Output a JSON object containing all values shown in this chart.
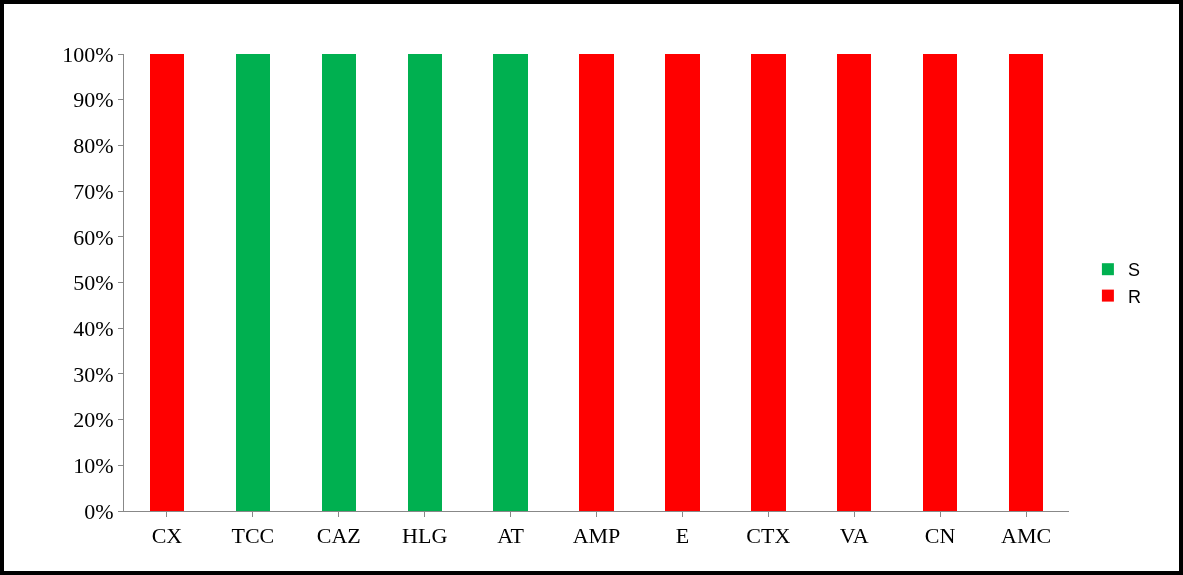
{
  "chart_data": {
    "type": "bar",
    "stacked": true,
    "categories": [
      "CX",
      "TCC",
      "CAZ",
      "HLG",
      "AT",
      "AMP",
      "E",
      "CTX",
      "VA",
      "CN",
      "AMC"
    ],
    "series": [
      {
        "name": "R",
        "color": "#ff0000",
        "values": [
          100,
          0,
          0,
          0,
          0,
          100,
          100,
          100,
          100,
          100,
          100
        ]
      },
      {
        "name": "S",
        "color": "#00b050",
        "values": [
          0,
          100,
          100,
          100,
          100,
          0,
          0,
          0,
          0,
          0,
          0
        ]
      }
    ],
    "ylim": [
      0,
      100
    ],
    "yticks": [
      {
        "value": 0,
        "label": "0%"
      },
      {
        "value": 10,
        "label": "10%"
      },
      {
        "value": 20,
        "label": "20%"
      },
      {
        "value": 30,
        "label": "30%"
      },
      {
        "value": 40,
        "label": "40%"
      },
      {
        "value": 50,
        "label": "50%"
      },
      {
        "value": 60,
        "label": "60%"
      },
      {
        "value": 70,
        "label": "70%"
      },
      {
        "value": 80,
        "label": "80%"
      },
      {
        "value": 90,
        "label": "90%"
      },
      {
        "value": 100,
        "label": "100%"
      }
    ],
    "grid": false,
    "legend": "right"
  }
}
